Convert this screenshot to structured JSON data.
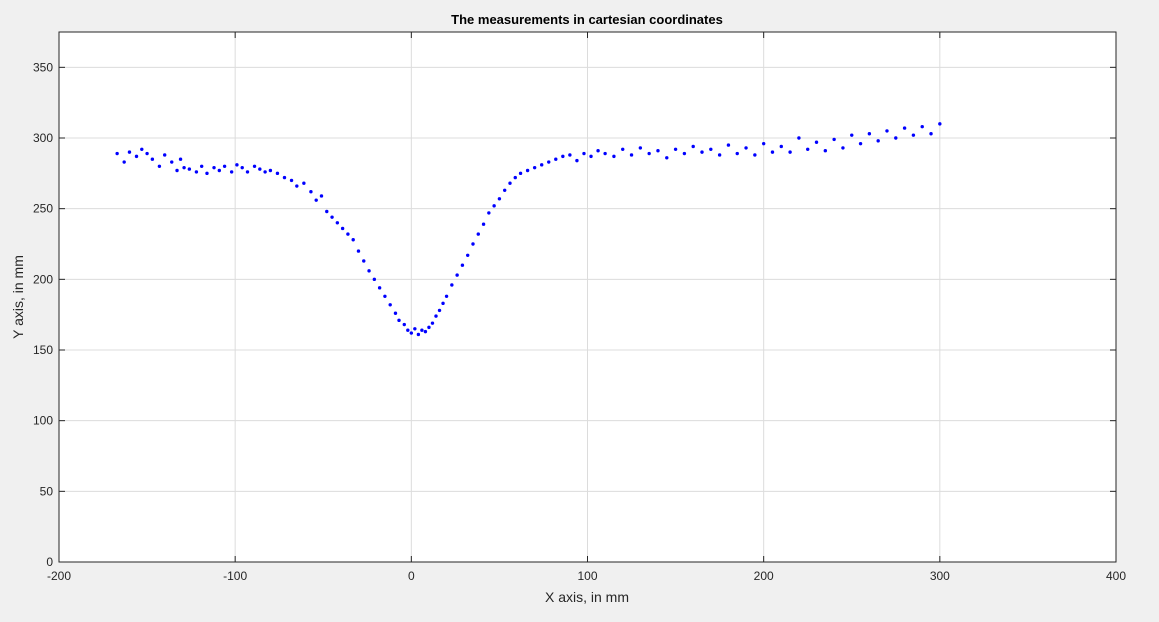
{
  "figure": {
    "title": "The measurements in cartesian coordinates",
    "xlabel": "X axis, in mm",
    "ylabel": "Y axis, in mm"
  },
  "chart_data": {
    "type": "scatter",
    "title": "The measurements in cartesian coordinates",
    "xlabel": "X axis, in mm",
    "ylabel": "Y axis, in mm",
    "xlim": [
      -200,
      400
    ],
    "ylim": [
      0,
      375
    ],
    "xticks": [
      -200,
      -100,
      0,
      100,
      200,
      300,
      400
    ],
    "yticks": [
      0,
      50,
      100,
      150,
      200,
      250,
      300,
      350
    ],
    "grid": true,
    "marker_color": "#0000ff",
    "series": [
      {
        "x": [
          -167,
          -163,
          -160,
          -156,
          -153,
          -150,
          -147,
          -143,
          -140,
          -136,
          -133,
          -131,
          -129,
          -126,
          -122,
          -119,
          -116,
          -112,
          -109,
          -106,
          -102,
          -99,
          -96,
          -93,
          -89,
          -86,
          -83,
          -80,
          -76,
          -72,
          -68,
          -65,
          -61,
          -57,
          -54,
          -51,
          -48,
          -45,
          -42,
          -39,
          -36,
          -33,
          -30,
          -27,
          -24,
          -21,
          -18,
          -15,
          -12,
          -9,
          -7,
          -4,
          -2,
          0,
          2,
          4,
          6,
          8,
          10,
          12,
          14,
          16,
          18,
          20,
          23,
          26,
          29,
          32,
          35,
          38,
          41,
          44,
          47,
          50,
          53,
          56,
          59,
          62,
          66,
          70,
          74,
          78,
          82,
          86,
          90,
          94,
          98,
          102,
          106,
          110,
          115,
          120,
          125,
          130,
          135,
          140,
          145,
          150,
          155,
          160,
          165,
          170,
          175,
          180,
          185,
          190,
          195,
          200,
          205,
          210,
          215,
          220,
          225,
          230,
          235,
          240,
          245,
          250,
          255,
          260,
          265,
          270,
          275,
          280,
          285,
          290,
          295,
          300
        ],
        "y": [
          289,
          283,
          290,
          287,
          292,
          289,
          285,
          280,
          288,
          283,
          277,
          285,
          279,
          278,
          276,
          280,
          275,
          279,
          277,
          280,
          276,
          281,
          279,
          276,
          280,
          278,
          276,
          277,
          275,
          272,
          270,
          266,
          268,
          262,
          256,
          259,
          248,
          244,
          240,
          236,
          232,
          228,
          220,
          213,
          206,
          200,
          194,
          188,
          182,
          176,
          171,
          168,
          164,
          162,
          165,
          161,
          164,
          163,
          166,
          169,
          174,
          178,
          183,
          188,
          196,
          203,
          210,
          217,
          225,
          232,
          239,
          247,
          252,
          257,
          263,
          268,
          272,
          275,
          277,
          279,
          281,
          283,
          285,
          287,
          288,
          284,
          289,
          287,
          291,
          289,
          287,
          292,
          288,
          293,
          289,
          291,
          286,
          292,
          289,
          294,
          290,
          292,
          288,
          295,
          289,
          293,
          288,
          296,
          290,
          294,
          290,
          300,
          292,
          297,
          291,
          299,
          293,
          302,
          296,
          303,
          298,
          305,
          300,
          307,
          302,
          308,
          303,
          310
        ]
      }
    ]
  }
}
